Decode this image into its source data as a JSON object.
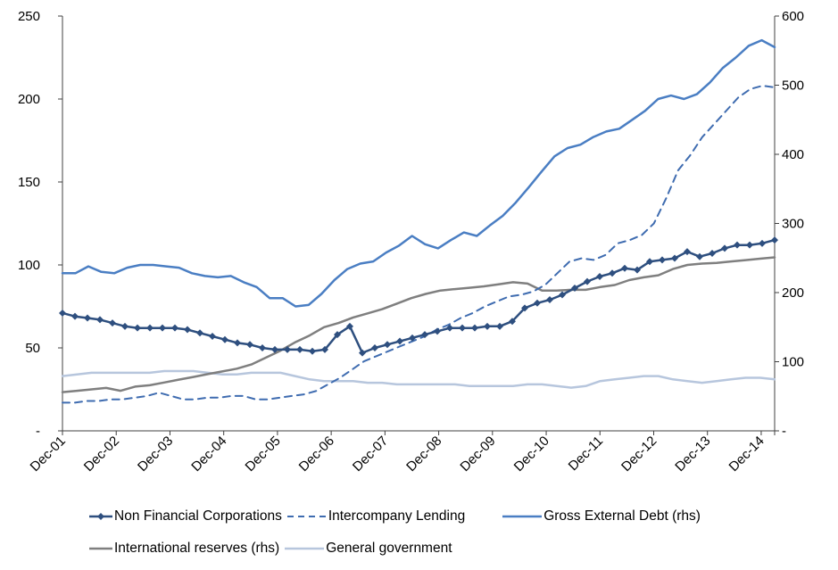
{
  "chart_data": {
    "type": "line",
    "title": "",
    "xlabel": "",
    "ylabel": "",
    "y_left": {
      "ticks": [
        "250",
        "200",
        "150",
        "100",
        "50",
        "-"
      ],
      "range": [
        0,
        250
      ]
    },
    "y_right": {
      "ticks": [
        "600",
        "500",
        "400",
        "300",
        "200",
        "100",
        "-"
      ],
      "range": [
        0,
        600
      ]
    },
    "x_tick_labels": [
      "Dec-01",
      "Dec-02",
      "Dec-03",
      "Dec-04",
      "Dec-05",
      "Dec-06",
      "Dec-07",
      "Dec-08",
      "Dec-09",
      "Dec-10",
      "Dec-11",
      "Dec-12",
      "Dec-13",
      "Dec-14"
    ],
    "x_quarters": 53,
    "grid": false,
    "legend_position": "bottom",
    "series": [
      {
        "name": "Non Financial Corporations",
        "axis": "left",
        "color": "#2E4F7F",
        "style": "solid-markers",
        "values": [
          71,
          69,
          68,
          67,
          65,
          63,
          62,
          62,
          62,
          62,
          61,
          59,
          57,
          55,
          53,
          52,
          50,
          49,
          49,
          49,
          48,
          49,
          58,
          63,
          47,
          50,
          52,
          54,
          56,
          58,
          60,
          62,
          62,
          62,
          63,
          63,
          66,
          74,
          77,
          79,
          82,
          86,
          90,
          93,
          95,
          98,
          97,
          102,
          103,
          104,
          108,
          105,
          107,
          110,
          112,
          112,
          113,
          115
        ]
      },
      {
        "name": "Intercompany Lending",
        "axis": "left",
        "color": "#3F6CB0",
        "style": "dashed",
        "values": [
          17,
          17,
          18,
          18,
          19,
          19,
          20,
          21,
          23,
          21,
          19,
          19,
          20,
          20,
          21,
          21,
          19,
          19,
          20,
          21,
          22,
          24,
          28,
          32,
          37,
          42,
          45,
          48,
          51,
          54,
          57,
          61,
          64,
          68,
          71,
          75,
          78,
          81,
          82,
          84,
          88,
          95,
          102,
          104,
          103,
          106,
          113,
          115,
          118,
          125,
          140,
          157,
          166,
          177,
          185,
          193,
          201,
          206,
          208,
          207
        ]
      },
      {
        "name": "Gross External Debt (rhs)",
        "axis": "right",
        "color": "#4A7EC3",
        "style": "solid",
        "values": [
          228,
          228,
          238,
          230,
          228,
          236,
          240,
          240,
          238,
          236,
          228,
          224,
          222,
          224,
          215,
          208,
          192,
          192,
          180,
          182,
          198,
          218,
          234,
          242,
          245,
          258,
          268,
          282,
          270,
          264,
          276,
          287,
          282,
          297,
          311,
          330,
          352,
          375,
          397,
          409,
          414,
          425,
          433,
          437,
          450,
          463,
          480,
          485,
          480,
          487,
          504,
          525,
          540,
          557,
          565,
          555
        ]
      },
      {
        "name": "International reserves (rhs)",
        "axis": "right",
        "color": "#7F7F7F",
        "style": "solid",
        "values": [
          56,
          58,
          60,
          62,
          58,
          64,
          66,
          70,
          74,
          78,
          82,
          86,
          90,
          96,
          106,
          116,
          128,
          138,
          150,
          156,
          164,
          170,
          176,
          184,
          192,
          198,
          203,
          205,
          207,
          209,
          212,
          215,
          213,
          203,
          203,
          204,
          204,
          208,
          211,
          218,
          222,
          225,
          234,
          240,
          242,
          243,
          245,
          247,
          249,
          251
        ]
      },
      {
        "name": "General government",
        "axis": "left",
        "color": "#B7C6DD",
        "style": "solid",
        "values": [
          33,
          34,
          35,
          35,
          35,
          35,
          35,
          36,
          36,
          36,
          35,
          34,
          34,
          35,
          35,
          35,
          33,
          31,
          30,
          30,
          30,
          29,
          29,
          28,
          28,
          28,
          28,
          28,
          27,
          27,
          27,
          27,
          28,
          28,
          27,
          26,
          27,
          30,
          31,
          32,
          33,
          33,
          31,
          30,
          29,
          30,
          31,
          32,
          32,
          31
        ]
      }
    ]
  },
  "colors": {
    "axis": "#404040",
    "nfc": "#2E4F7F",
    "icl": "#3F6CB0",
    "ged": "#4A7EC3",
    "res": "#7F7F7F",
    "gov": "#B7C6DD"
  }
}
